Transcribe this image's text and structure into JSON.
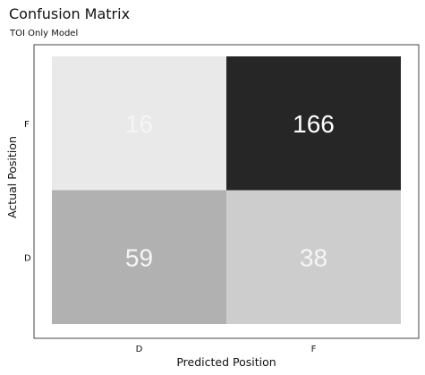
{
  "chart_data": {
    "type": "heatmap",
    "title": "Confusion Matrix",
    "subtitle": "TOI Only Model",
    "xlabel": "Predicted Position",
    "ylabel": "Actual Position",
    "x_categories": [
      "D",
      "F"
    ],
    "y_categories": [
      "D",
      "F"
    ],
    "cells": [
      {
        "actual": "F",
        "predicted": "D",
        "value": 16
      },
      {
        "actual": "F",
        "predicted": "F",
        "value": 166
      },
      {
        "actual": "D",
        "predicted": "D",
        "value": 59
      },
      {
        "actual": "D",
        "predicted": "F",
        "value": 38
      }
    ],
    "colorscale": [
      "#ffffff",
      "#262626"
    ],
    "grid": false,
    "legend": "none"
  }
}
